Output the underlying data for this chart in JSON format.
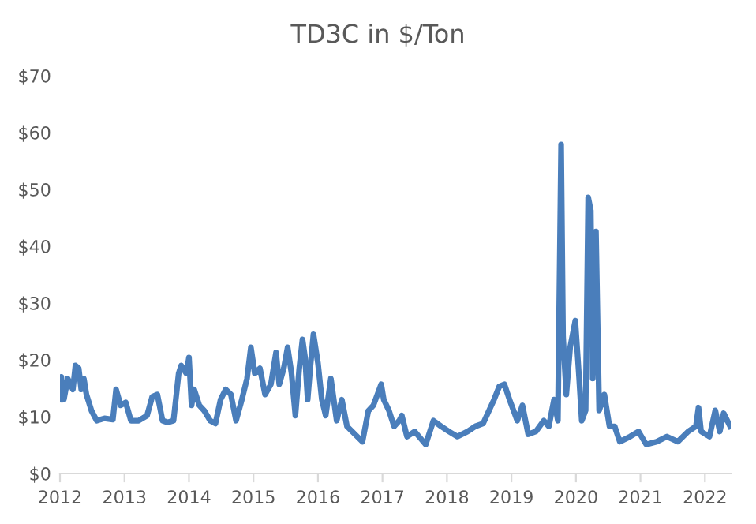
{
  "chart_data": {
    "type": "line",
    "title": "TD3C in $/Ton",
    "x": [
      2012.0,
      2012.02,
      2012.06,
      2012.12,
      2012.2,
      2012.24,
      2012.29,
      2012.33,
      2012.37,
      2012.41,
      2012.49,
      2012.57,
      2012.69,
      2012.82,
      2012.87,
      2012.94,
      2013.02,
      2013.1,
      2013.22,
      2013.35,
      2013.43,
      2013.51,
      2013.59,
      2013.67,
      2013.76,
      2013.84,
      2013.88,
      2013.96,
      2014.0,
      2014.04,
      2014.08,
      2014.16,
      2014.24,
      2014.33,
      2014.41,
      2014.49,
      2014.57,
      2014.65,
      2014.73,
      2014.82,
      2014.9,
      2014.96,
      2015.02,
      2015.1,
      2015.18,
      2015.27,
      2015.35,
      2015.4,
      2015.47,
      2015.53,
      2015.59,
      2015.65,
      2015.71,
      2015.76,
      2015.8,
      2015.84,
      2015.88,
      2015.93,
      2016.0,
      2016.06,
      2016.12,
      2016.2,
      2016.29,
      2016.37,
      2016.45,
      2016.53,
      2016.61,
      2016.69,
      2016.78,
      2016.86,
      2016.98,
      2017.02,
      2017.1,
      2017.18,
      2017.26,
      2017.3,
      2017.38,
      2017.5,
      2017.67,
      2017.79,
      2017.91,
      2018.03,
      2018.16,
      2018.32,
      2018.44,
      2018.56,
      2018.73,
      2018.81,
      2018.89,
      2018.97,
      2019.09,
      2019.17,
      2019.26,
      2019.38,
      2019.5,
      2019.58,
      2019.66,
      2019.72,
      2019.77,
      2019.8,
      2019.85,
      2019.91,
      2019.99,
      2020.05,
      2020.09,
      2020.15,
      2020.19,
      2020.23,
      2020.26,
      2020.31,
      2020.36,
      2020.44,
      2020.52,
      2020.6,
      2020.68,
      2020.84,
      2020.97,
      2021.09,
      2021.25,
      2021.41,
      2021.58,
      2021.74,
      2021.86,
      2021.9,
      2021.94,
      2022.07,
      2022.16,
      2022.23,
      2022.29,
      2022.39
    ],
    "series": [
      {
        "color": "#4a7ebb",
        "values": [
          13,
          17,
          13,
          16.7,
          14.8,
          19,
          18.5,
          14.8,
          16.7,
          13.9,
          11,
          9.3,
          9.7,
          9.5,
          14.8,
          12,
          12.5,
          9.3,
          9.3,
          10.2,
          13.5,
          13.9,
          9.3,
          9,
          9.3,
          17.6,
          19,
          17.6,
          20.4,
          12,
          14.8,
          12,
          11,
          9.3,
          8.8,
          13,
          14.8,
          13.9,
          9.3,
          13,
          16.7,
          22.2,
          17.6,
          18.5,
          13.9,
          15.7,
          21.3,
          15.7,
          18.5,
          22.2,
          17.6,
          10.2,
          18.5,
          23.6,
          20.4,
          13,
          18.5,
          24.5,
          19.4,
          13,
          10.2,
          16.7,
          9.3,
          13,
          8.3,
          7.4,
          6.5,
          5.6,
          11,
          12,
          15.7,
          13,
          11.1,
          8.3,
          9.3,
          10.2,
          6.5,
          7.4,
          5.1,
          9.3,
          8.3,
          7.4,
          6.5,
          7.4,
          8.3,
          8.8,
          13,
          15.3,
          15.7,
          13,
          9.3,
          12,
          6.9,
          7.4,
          9.3,
          8.3,
          13,
          9.3,
          57.9,
          24.1,
          13.9,
          22.2,
          26.9,
          16.7,
          9.3,
          11.1,
          48.6,
          46.3,
          16.7,
          42.6,
          11.1,
          13.9,
          8.3,
          8.3,
          5.6,
          6.5,
          7.4,
          5.1,
          5.6,
          6.5,
          5.6,
          7.4,
          8.3,
          11.6,
          7.4,
          6.5,
          11.1,
          7.4,
          10.6,
          8.3
        ]
      }
    ],
    "xlim": [
      2012,
      2022.4
    ],
    "xticks": [
      2012,
      2013,
      2014,
      2015,
      2016,
      2017,
      2018,
      2019,
      2020,
      2021,
      2022
    ],
    "ylim": [
      0,
      70
    ],
    "yticks": [
      {
        "value": 0,
        "label": "$0"
      },
      {
        "value": 10,
        "label": "$10"
      },
      {
        "value": 20,
        "label": "$20"
      },
      {
        "value": 30,
        "label": "$30"
      },
      {
        "value": 40,
        "label": "$40"
      },
      {
        "value": 50,
        "label": "$50"
      },
      {
        "value": 60,
        "label": "$60"
      },
      {
        "value": 70,
        "label": "$70"
      }
    ],
    "grid": false,
    "legend": false,
    "marker": "none",
    "line_style": "solid"
  }
}
